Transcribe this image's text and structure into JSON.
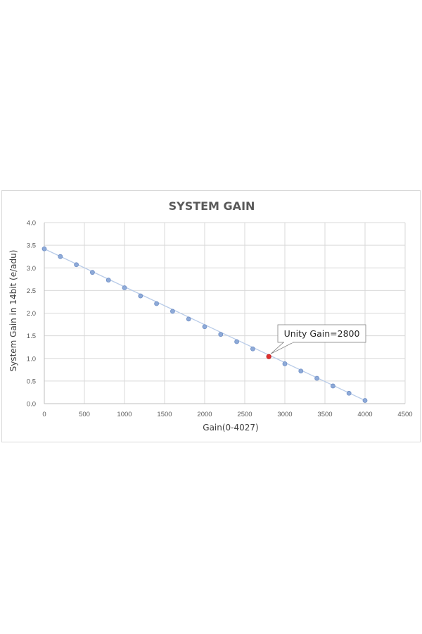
{
  "chart_data": {
    "type": "scatter",
    "title": "SYSTEM GAIN",
    "xlabel": "Gain(0-4027)",
    "ylabel": "System Gain in 14bit (e/adu)",
    "xlim": [
      0,
      4500
    ],
    "ylim": [
      0,
      4.0
    ],
    "xticks": [
      "0",
      "500",
      "1000",
      "1500",
      "2000",
      "2500",
      "3000",
      "3500",
      "4000",
      "4500"
    ],
    "yticks": [
      "0.0",
      "0.5",
      "1.0",
      "1.5",
      "2.0",
      "2.5",
      "3.0",
      "3.5",
      "4.0"
    ],
    "grid": true,
    "series": [
      {
        "x": [
          0,
          200,
          400,
          600,
          800,
          1000,
          1200,
          1400,
          1600,
          1800,
          2000,
          2200,
          2400,
          2600,
          3000,
          3200,
          3400,
          3600,
          3800,
          4000
        ],
        "y": [
          3.42,
          3.25,
          3.07,
          2.9,
          2.73,
          2.56,
          2.38,
          2.21,
          2.04,
          1.87,
          1.7,
          1.53,
          1.37,
          1.21,
          0.88,
          0.72,
          0.56,
          0.39,
          0.23,
          0.07
        ],
        "color": "#8eaad8"
      }
    ],
    "highlight": {
      "x": 2800,
      "y": 1.04,
      "color": "#e0302e"
    },
    "trendline": {
      "x": [
        0,
        4000
      ],
      "y": [
        3.42,
        0.07
      ],
      "color": "#b8cbe8"
    },
    "annotation": {
      "text": "Unity Gain=2800",
      "x": 2800,
      "y": 1.04
    }
  }
}
